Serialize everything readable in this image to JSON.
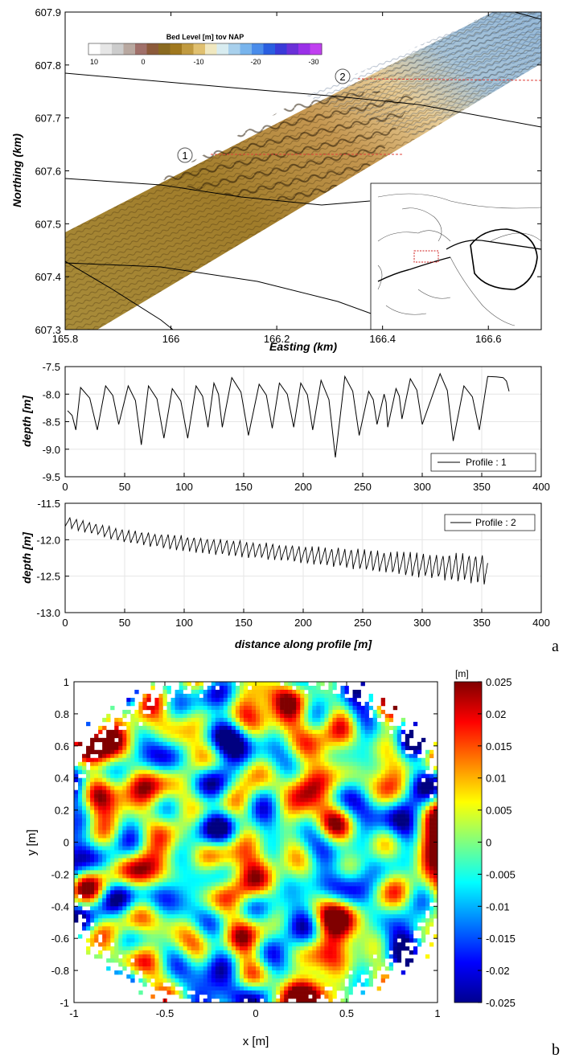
{
  "panel_labels": {
    "a": "a",
    "b": "b"
  },
  "chart_data": [
    {
      "type": "heatmap",
      "panel": "a-map",
      "xlabel": "Easting (km)",
      "ylabel": "Northing (km)",
      "xlim": [
        165.8,
        166.7
      ],
      "ylim": [
        607.3,
        607.9
      ],
      "xticks": [
        "165.8",
        "166",
        "166.2",
        "166.4",
        "166.6"
      ],
      "yticks": [
        "607.3",
        "607.4",
        "607.5",
        "607.6",
        "607.7",
        "607.8",
        "607.9"
      ],
      "colorbar": {
        "title": "Bed Level  [m] tov NAP",
        "ticks": [
          "10",
          "0",
          "-10",
          "-20",
          "-30"
        ],
        "colors": [
          "#ffffff",
          "#e6e6e6",
          "#cccccc",
          "#b8a8a0",
          "#a0706a",
          "#8c5a3a",
          "#8a6a20",
          "#a0781e",
          "#c09a40",
          "#e0c070",
          "#f0e8c0",
          "#d8ecf0",
          "#a8d0ec",
          "#78b4ec",
          "#4a8cea",
          "#2a5ee0",
          "#3a3ad8",
          "#6a30d8",
          "#9a30e8",
          "#c040f0"
        ]
      },
      "profile_markers": [
        "1",
        "2"
      ],
      "grid": false
    },
    {
      "type": "line",
      "panel": "a-profile1",
      "xlabel": "",
      "ylabel": "depth [m]",
      "xlim": [
        0,
        400
      ],
      "ylim": [
        -9.5,
        -7.5
      ],
      "xticks": [
        "0",
        "50",
        "100",
        "150",
        "200",
        "250",
        "300",
        "350",
        "400"
      ],
      "yticks": [
        "-7.5",
        "-8.0",
        "-8.5",
        "-9.0",
        "-9.5"
      ],
      "legend": "bottom-right",
      "grid": true,
      "series": [
        {
          "name": "Profile : 1",
          "crests": [
            [
              2,
              -8.3
            ],
            [
              13,
              -7.88
            ],
            [
              34,
              -7.85
            ],
            [
              53,
              -7.85
            ],
            [
              70,
              -7.85
            ],
            [
              90,
              -7.9
            ],
            [
              110,
              -7.85
            ],
            [
              125,
              -7.8
            ],
            [
              140,
              -7.7
            ],
            [
              163,
              -7.82
            ],
            [
              180,
              -7.8
            ],
            [
              198,
              -7.8
            ],
            [
              215,
              -7.75
            ],
            [
              235,
              -7.68
            ],
            [
              255,
              -7.95
            ],
            [
              268,
              -8.0
            ],
            [
              278,
              -7.9
            ],
            [
              290,
              -7.72
            ],
            [
              315,
              -7.63
            ],
            [
              335,
              -7.85
            ],
            [
              355,
              -7.68
            ],
            [
              368,
              -7.7
            ]
          ],
          "troughs": [
            [
              9,
              -8.65
            ],
            [
              27,
              -8.65
            ],
            [
              45,
              -8.55
            ],
            [
              64,
              -8.92
            ],
            [
              83,
              -8.8
            ],
            [
              103,
              -8.8
            ],
            [
              120,
              -8.6
            ],
            [
              132,
              -8.6
            ],
            [
              154,
              -8.75
            ],
            [
              174,
              -8.62
            ],
            [
              192,
              -8.6
            ],
            [
              208,
              -8.65
            ],
            [
              227,
              -9.15
            ],
            [
              247,
              -8.75
            ],
            [
              262,
              -8.55
            ],
            [
              271,
              -8.6
            ],
            [
              283,
              -8.45
            ],
            [
              300,
              -8.55
            ],
            [
              326,
              -8.85
            ],
            [
              348,
              -8.65
            ]
          ],
          "end": [
            373,
            -7.95
          ]
        }
      ]
    },
    {
      "type": "line",
      "panel": "a-profile2",
      "xlabel": "distance along profile [m]",
      "ylabel": "depth [m]",
      "xlim": [
        0,
        400
      ],
      "ylim": [
        -13.0,
        -11.5
      ],
      "xticks": [
        "0",
        "50",
        "100",
        "150",
        "200",
        "250",
        "300",
        "350",
        "400"
      ],
      "yticks": [
        "-11.5",
        "-12.0",
        "-12.5",
        "-13.0"
      ],
      "legend": "top-right",
      "grid": true,
      "series": [
        {
          "name": "Profile : 2",
          "x_start": 0,
          "x_end": 355,
          "wavelength": 5.5,
          "trend": [
            [
              0,
              -11.75
            ],
            [
              50,
              -11.95
            ],
            [
              100,
              -12.05
            ],
            [
              200,
              -12.2
            ],
            [
              300,
              -12.35
            ],
            [
              355,
              -12.4
            ]
          ],
          "amplitude": [
            [
              0,
              0.15
            ],
            [
              100,
              0.22
            ],
            [
              200,
              0.25
            ],
            [
              300,
              0.35
            ],
            [
              355,
              0.45
            ]
          ]
        }
      ]
    },
    {
      "type": "heatmap",
      "panel": "b",
      "xlabel": "x [m]",
      "ylabel": "y [m]",
      "xlim": [
        -1,
        1
      ],
      "ylim": [
        -1,
        1
      ],
      "xticks": [
        "-1",
        "-0.5",
        "0",
        "0.5",
        "1"
      ],
      "yticks": [
        "-1",
        "-0.8",
        "-0.6",
        "-0.4",
        "-0.2",
        "0",
        "0.2",
        "0.4",
        "0.6",
        "0.8",
        "1"
      ],
      "colorbar": {
        "unit": "[m]",
        "ticks": [
          "0.025",
          "0.02",
          "0.015",
          "0.01",
          "0.005",
          "0",
          "-0.005",
          "-0.01",
          "-0.015",
          "-0.02",
          "-0.025"
        ],
        "colormap": "jet",
        "range": [
          -0.025,
          0.025
        ]
      },
      "grid": false
    }
  ]
}
